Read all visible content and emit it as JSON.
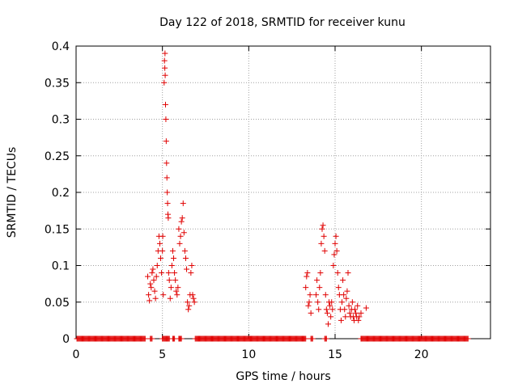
{
  "chart_data": {
    "type": "scatter",
    "title": "Day 122 of 2018, SRMTID for receiver kunu",
    "xlabel": "GPS time / hours",
    "ylabel": "SRMTID / TECUs",
    "xlim": [
      0,
      24
    ],
    "ylim": [
      0,
      0.4
    ],
    "xticks": [
      0,
      5,
      10,
      15,
      20
    ],
    "xtick_labels": [
      "0",
      "5",
      "10",
      "15",
      "20"
    ],
    "yticks": [
      0,
      0.05,
      0.1,
      0.15,
      0.2,
      0.25,
      0.3,
      0.35,
      0.4
    ],
    "ytick_labels": [
      "0",
      "0.05",
      "0.1",
      "0.15",
      "0.2",
      "0.25",
      "0.3",
      "0.35",
      "0.4"
    ],
    "grid": true,
    "marker": "plus",
    "color": "#e00000",
    "series": [
      {
        "name": "SRMTID",
        "points": [
          [
            4.15,
            0.085
          ],
          [
            4.2,
            0.06
          ],
          [
            4.25,
            0.052
          ],
          [
            4.3,
            0.075
          ],
          [
            4.35,
            0.07
          ],
          [
            4.4,
            0.09
          ],
          [
            4.45,
            0.095
          ],
          [
            4.5,
            0.08
          ],
          [
            4.55,
            0.065
          ],
          [
            4.6,
            0.055
          ],
          [
            4.65,
            0.085
          ],
          [
            4.7,
            0.1
          ],
          [
            4.75,
            0.12
          ],
          [
            4.8,
            0.14
          ],
          [
            4.85,
            0.13
          ],
          [
            4.9,
            0.11
          ],
          [
            4.95,
            0.09
          ],
          [
            5.0,
            0.12
          ],
          [
            5.02,
            0.14
          ],
          [
            5.05,
            0.06
          ],
          [
            5.1,
            0.35
          ],
          [
            5.12,
            0.38
          ],
          [
            5.14,
            0.37
          ],
          [
            5.15,
            0.39
          ],
          [
            5.16,
            0.36
          ],
          [
            5.18,
            0.32
          ],
          [
            5.2,
            0.3
          ],
          [
            5.22,
            0.27
          ],
          [
            5.24,
            0.24
          ],
          [
            5.26,
            0.22
          ],
          [
            5.28,
            0.2
          ],
          [
            5.3,
            0.185
          ],
          [
            5.32,
            0.17
          ],
          [
            5.34,
            0.165
          ],
          [
            5.36,
            0.09
          ],
          [
            5.4,
            0.08
          ],
          [
            5.45,
            0.055
          ],
          [
            5.5,
            0.07
          ],
          [
            5.55,
            0.1
          ],
          [
            5.6,
            0.12
          ],
          [
            5.65,
            0.11
          ],
          [
            5.7,
            0.09
          ],
          [
            5.75,
            0.08
          ],
          [
            5.8,
            0.065
          ],
          [
            5.85,
            0.06
          ],
          [
            5.9,
            0.07
          ],
          [
            5.95,
            0.15
          ],
          [
            6.0,
            0.13
          ],
          [
            6.05,
            0.14
          ],
          [
            6.1,
            0.16
          ],
          [
            6.15,
            0.165
          ],
          [
            6.2,
            0.185
          ],
          [
            6.25,
            0.145
          ],
          [
            6.3,
            0.12
          ],
          [
            6.35,
            0.11
          ],
          [
            6.4,
            0.095
          ],
          [
            6.45,
            0.05
          ],
          [
            6.5,
            0.04
          ],
          [
            6.55,
            0.045
          ],
          [
            6.6,
            0.06
          ],
          [
            6.65,
            0.09
          ],
          [
            6.7,
            0.1
          ],
          [
            6.75,
            0.06
          ],
          [
            6.8,
            0.055
          ],
          [
            6.85,
            0.05
          ],
          [
            13.3,
            0.07
          ],
          [
            13.35,
            0.085
          ],
          [
            13.4,
            0.09
          ],
          [
            13.45,
            0.045
          ],
          [
            13.5,
            0.05
          ],
          [
            13.55,
            0.06
          ],
          [
            13.6,
            0.035
          ],
          [
            13.9,
            0.06
          ],
          [
            13.95,
            0.08
          ],
          [
            14.0,
            0.05
          ],
          [
            14.05,
            0.04
          ],
          [
            14.1,
            0.07
          ],
          [
            14.15,
            0.09
          ],
          [
            14.2,
            0.13
          ],
          [
            14.25,
            0.15
          ],
          [
            14.3,
            0.155
          ],
          [
            14.35,
            0.14
          ],
          [
            14.4,
            0.12
          ],
          [
            14.45,
            0.06
          ],
          [
            14.5,
            0.04
          ],
          [
            14.55,
            0.035
          ],
          [
            14.6,
            0.02
          ],
          [
            14.65,
            0.05
          ],
          [
            14.7,
            0.045
          ],
          [
            14.75,
            0.03
          ],
          [
            14.8,
            0.05
          ],
          [
            14.85,
            0.04
          ],
          [
            14.9,
            0.1
          ],
          [
            14.95,
            0.115
          ],
          [
            15.0,
            0.13
          ],
          [
            15.05,
            0.14
          ],
          [
            15.1,
            0.12
          ],
          [
            15.15,
            0.09
          ],
          [
            15.2,
            0.07
          ],
          [
            15.25,
            0.06
          ],
          [
            15.3,
            0.04
          ],
          [
            15.35,
            0.025
          ],
          [
            15.4,
            0.05
          ],
          [
            15.45,
            0.08
          ],
          [
            15.5,
            0.06
          ],
          [
            15.55,
            0.04
          ],
          [
            15.6,
            0.03
          ],
          [
            15.65,
            0.055
          ],
          [
            15.7,
            0.065
          ],
          [
            15.75,
            0.09
          ],
          [
            15.8,
            0.045
          ],
          [
            15.85,
            0.035
          ],
          [
            15.9,
            0.03
          ],
          [
            15.95,
            0.04
          ],
          [
            16.0,
            0.05
          ],
          [
            16.05,
            0.03
          ],
          [
            16.1,
            0.025
          ],
          [
            16.15,
            0.04
          ],
          [
            16.2,
            0.035
          ],
          [
            16.25,
            0.03
          ],
          [
            16.3,
            0.045
          ],
          [
            16.35,
            0.025
          ],
          [
            16.4,
            0.03
          ],
          [
            16.5,
            0.035
          ],
          [
            16.8,
            0.042
          ]
        ]
      }
    ],
    "zero_baseline_ranges": [
      [
        0.05,
        4.0
      ],
      [
        4.3,
        4.4
      ],
      [
        5.0,
        5.4
      ],
      [
        5.6,
        5.7
      ],
      [
        5.95,
        6.1
      ],
      [
        6.9,
        13.3
      ],
      [
        13.6,
        13.7
      ],
      [
        14.4,
        14.5
      ],
      [
        16.5,
        22.7
      ]
    ]
  }
}
